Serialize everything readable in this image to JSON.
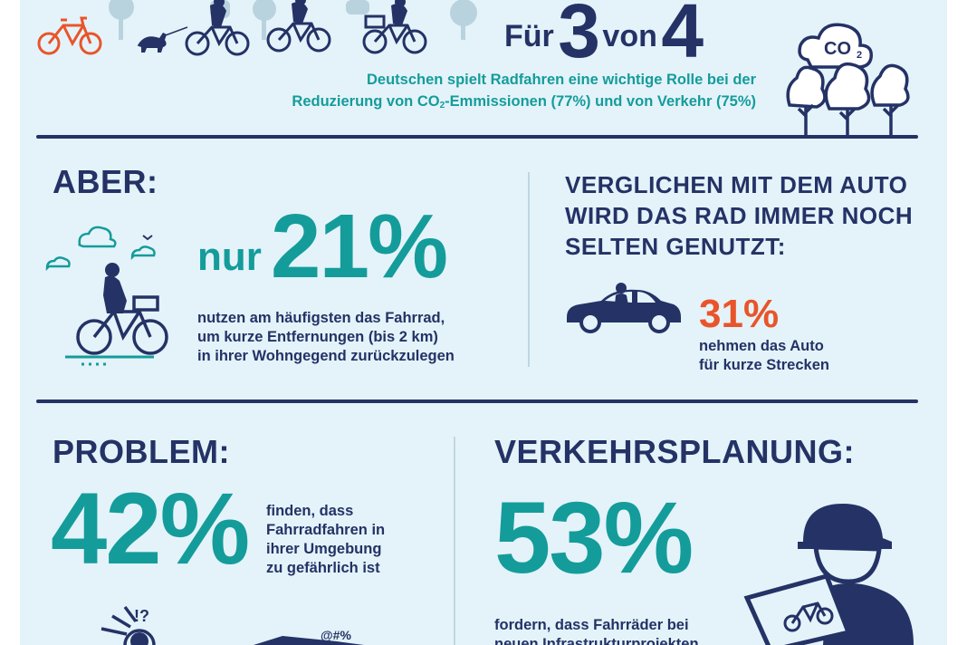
{
  "top": {
    "hero_prefix": "Für",
    "hero_num_1": "3",
    "hero_middle": "von",
    "hero_num_2": "4",
    "sub_line_1": "Deutschen spielt Radfahren eine wichtige Rolle bei der",
    "sub_line_2_pre": "Reduzierung von CO",
    "sub_line_2_sub": "2",
    "sub_line_2_post": "-Emmissionen (77%) und von Verkehr (75%)",
    "co2_label": "CO",
    "co2_sub": "2"
  },
  "middle": {
    "aber_heading": "ABER:",
    "stat_prefix": "nur",
    "stat_value": "21%",
    "stat_desc_1": "nutzen am häufigsten das Fahrrad,",
    "stat_desc_2": "um kurze Entfernungen (bis 2 km)",
    "stat_desc_3": "in ihrer Wohngegend zurückzulegen",
    "compare_heading_1": "VERGLICHEN MIT DEM AUTO",
    "compare_heading_2": "WIRD DAS RAD IMMER NOCH",
    "compare_heading_3": "SELTEN GENUTZT:",
    "car_value": "31%",
    "car_desc_1": "nehmen das Auto",
    "car_desc_2": "für kurze Strecken"
  },
  "bottom": {
    "problem_heading": "PROBLEM:",
    "problem_value": "42%",
    "problem_desc_1": "finden, dass",
    "problem_desc_2": "Fahrradfahren in",
    "problem_desc_3": "ihrer Umgebung",
    "problem_desc_4": "zu gefährlich ist",
    "planning_heading": "VERKEHRSPLANUNG:",
    "planning_value": "53%",
    "planning_desc_1": "fordern, dass Fahrräder bei",
    "planning_desc_2": "neuen Infrastrukturprojekten",
    "exclaim_text": "!?",
    "curse_text": "@#%"
  },
  "colors": {
    "background": "#e4f3f9",
    "navy": "#243266",
    "teal": "#149c9b",
    "orange": "#e8552a"
  },
  "icons": [
    "bicycle-icon",
    "dog-icon",
    "cyclist-icon",
    "tree-icon",
    "cloud-icon",
    "bird-icon",
    "car-icon",
    "worker-icon",
    "alert-icon"
  ]
}
